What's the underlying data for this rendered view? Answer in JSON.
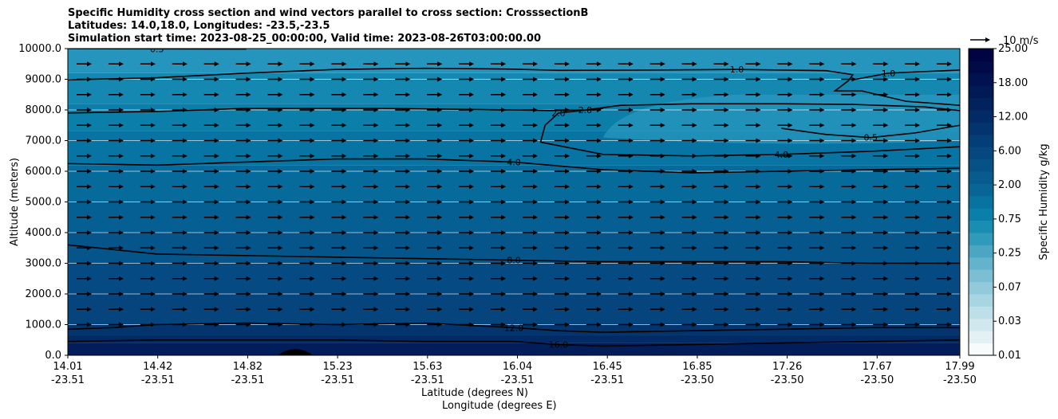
{
  "chart_data": {
    "type": "heatmap",
    "title_lines": [
      "Specific Humidity cross section and wind vectors parallel to cross section: CrosssectionB",
      "Latitudes: 14.0,18.0, Longitudes: -23.5,-23.5",
      "Simulation start time: 2023-08-25_00:00:00, Valid time: 2023-08-26T03:00:00.00"
    ],
    "ylabel": "Altitude (meters)",
    "xlabel_lat": "Latitude (degrees N)",
    "xlabel_lon": "Longitude (degrees E)",
    "ylim": [
      0,
      10000
    ],
    "y_ticks": [
      "0.0",
      "1000.0",
      "2000.0",
      "3000.0",
      "4000.0",
      "5000.0",
      "6000.0",
      "7000.0",
      "8000.0",
      "9000.0",
      "10000.0"
    ],
    "x_ticks": [
      {
        "lat": "14.01",
        "lon": "-23.51"
      },
      {
        "lat": "14.42",
        "lon": "-23.51"
      },
      {
        "lat": "14.82",
        "lon": "-23.51"
      },
      {
        "lat": "15.23",
        "lon": "-23.51"
      },
      {
        "lat": "15.63",
        "lon": "-23.51"
      },
      {
        "lat": "16.04",
        "lon": "-23.51"
      },
      {
        "lat": "16.45",
        "lon": "-23.51"
      },
      {
        "lat": "16.85",
        "lon": "-23.50"
      },
      {
        "lat": "17.26",
        "lon": "-23.50"
      },
      {
        "lat": "17.67",
        "lon": "-23.50"
      },
      {
        "lat": "17.99",
        "lon": "-23.50"
      }
    ],
    "colorbar": {
      "label": "Specific Humidity g/kg",
      "tick_labels": [
        "0.01",
        "0.03",
        "0.07",
        "0.25",
        "0.75",
        "2.00",
        "6.00",
        "12.00",
        "18.00",
        "25.00"
      ],
      "colors": [
        "#f7fbfc",
        "#e3f1f5",
        "#d0e8ee",
        "#bddfe8",
        "#a8d5e2",
        "#93cadb",
        "#7cbfd4",
        "#64b3cc",
        "#4aa6c3",
        "#309aba",
        "#1a8db3",
        "#0a7faa",
        "#0872a0",
        "#086697",
        "#075b8e",
        "#065186",
        "#05477e",
        "#043e76",
        "#03346d",
        "#022b65",
        "#01225d",
        "#001a56",
        "#00124f",
        "#000b48",
        "#000441"
      ]
    },
    "humidity_layers": [
      {
        "alt_top": 10000,
        "color": "#2595bd"
      },
      {
        "alt_top": 9200,
        "color": "#1588b2"
      },
      {
        "alt_top": 8200,
        "color": "#0b7eaa"
      },
      {
        "alt_top": 7300,
        "color": "#0774a3"
      },
      {
        "alt_top": 6200,
        "color": "#066b9b"
      },
      {
        "alt_top": 5000,
        "color": "#065f92"
      },
      {
        "alt_top": 4000,
        "color": "#05548a"
      },
      {
        "alt_top": 3000,
        "color": "#054a82"
      },
      {
        "alt_top": 2000,
        "color": "#05447c"
      },
      {
        "alt_top": 1000,
        "color": "#03346e"
      },
      {
        "alt_top": 650,
        "color": "#022a64"
      },
      {
        "alt_top": 400,
        "color": "#011e5a"
      }
    ],
    "contours": [
      {
        "label": "0.5",
        "points": [
          [
            0.0,
            10000
          ],
          [
            0.1,
            9990
          ],
          [
            0.2,
            9985
          ]
        ]
      },
      {
        "label": "1.0",
        "points": [
          [
            0.0,
            8980
          ],
          [
            0.1,
            9050
          ],
          [
            0.2,
            9200
          ],
          [
            0.3,
            9320
          ],
          [
            0.4,
            9360
          ],
          [
            0.5,
            9330
          ],
          [
            0.55,
            9290
          ],
          [
            0.65,
            9300
          ],
          [
            0.75,
            9320
          ],
          [
            0.85,
            9280
          ],
          [
            0.88,
            9150
          ],
          [
            0.875,
            8950
          ],
          [
            0.86,
            8620
          ],
          [
            0.89,
            8620
          ],
          [
            0.94,
            8280
          ],
          [
            1.0,
            8150
          ]
        ]
      },
      {
        "label": "1.0",
        "points": [
          [
            0.88,
            8980
          ],
          [
            0.92,
            9200
          ],
          [
            1.0,
            9300
          ]
        ]
      },
      {
        "label": "2.0",
        "points": [
          [
            0.0,
            7900
          ],
          [
            0.1,
            7950
          ],
          [
            0.2,
            8050
          ],
          [
            0.35,
            8050
          ],
          [
            0.5,
            8000
          ],
          [
            0.54,
            7980
          ],
          [
            0.58,
            8000
          ],
          [
            0.62,
            8150
          ],
          [
            0.7,
            8200
          ],
          [
            0.8,
            8200
          ],
          [
            0.88,
            8180
          ],
          [
            0.96,
            8100
          ],
          [
            1.0,
            7980
          ]
        ]
      },
      {
        "label": "2.0",
        "points": [
          [
            0.53,
            6950
          ],
          [
            0.535,
            7500
          ],
          [
            0.55,
            7900
          ],
          [
            0.6,
            8050
          ]
        ]
      },
      {
        "label": "0.5",
        "points": [
          [
            0.8,
            7400
          ],
          [
            0.85,
            7200
          ],
          [
            0.9,
            7100
          ],
          [
            0.95,
            7250
          ],
          [
            1.0,
            7500
          ]
        ]
      },
      {
        "label": "4.0",
        "points": [
          [
            0.0,
            6250
          ],
          [
            0.1,
            6200
          ],
          [
            0.2,
            6300
          ],
          [
            0.3,
            6400
          ],
          [
            0.4,
            6400
          ],
          [
            0.5,
            6300
          ],
          [
            0.6,
            6050
          ],
          [
            0.7,
            5950
          ],
          [
            0.8,
            6000
          ],
          [
            0.9,
            6050
          ],
          [
            1.0,
            6100
          ]
        ]
      },
      {
        "label": "4.0",
        "points": [
          [
            0.53,
            6950
          ],
          [
            0.6,
            6550
          ],
          [
            0.7,
            6500
          ],
          [
            0.8,
            6550
          ],
          [
            0.9,
            6650
          ],
          [
            1.0,
            6800
          ]
        ]
      },
      {
        "label": "8.0",
        "points": [
          [
            0.0,
            3600
          ],
          [
            0.05,
            3450
          ],
          [
            0.1,
            3300
          ],
          [
            0.2,
            3250
          ],
          [
            0.3,
            3200
          ],
          [
            0.4,
            3150
          ],
          [
            0.5,
            3100
          ],
          [
            0.6,
            3050
          ],
          [
            0.7,
            3050
          ],
          [
            0.8,
            3050
          ],
          [
            0.9,
            3000
          ],
          [
            1.0,
            3000
          ]
        ]
      },
      {
        "label": "12.0",
        "points": [
          [
            0.0,
            850
          ],
          [
            0.05,
            900
          ],
          [
            0.1,
            1000
          ],
          [
            0.2,
            1050
          ],
          [
            0.3,
            1000
          ],
          [
            0.4,
            1050
          ],
          [
            0.5,
            900
          ],
          [
            0.55,
            800
          ],
          [
            0.6,
            750
          ],
          [
            0.7,
            800
          ],
          [
            0.8,
            850
          ],
          [
            0.9,
            900
          ],
          [
            1.0,
            900
          ]
        ]
      },
      {
        "label": "16.0",
        "points": [
          [
            0.0,
            450
          ],
          [
            0.1,
            500
          ],
          [
            0.2,
            500
          ],
          [
            0.3,
            500
          ],
          [
            0.4,
            450
          ],
          [
            0.5,
            450
          ],
          [
            0.55,
            350
          ],
          [
            0.6,
            300
          ],
          [
            0.7,
            350
          ],
          [
            0.8,
            400
          ],
          [
            0.9,
            450
          ],
          [
            1.0,
            500
          ]
        ]
      }
    ],
    "terrain_peak": {
      "x_center": 0.255,
      "height_m": 200
    },
    "wind": {
      "reference_label": "10 m/s",
      "columns": 28,
      "levels_m": [
        1000,
        1500,
        2000,
        2500,
        3000,
        3500,
        4000,
        4500,
        5000,
        5500,
        6000,
        6500,
        7000,
        7500,
        8000,
        8500,
        9000,
        9500
      ]
    }
  }
}
